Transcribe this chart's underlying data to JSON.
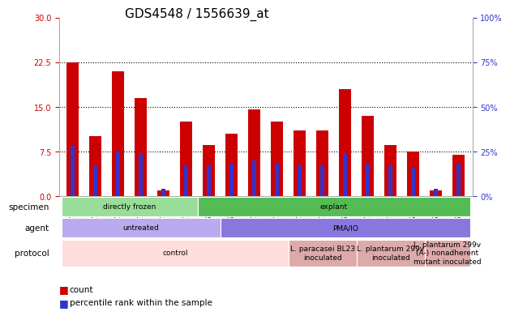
{
  "title": "GDS4548 / 1556639_at",
  "samples": [
    "GSM579384",
    "GSM579385",
    "GSM579386",
    "GSM579381",
    "GSM579382",
    "GSM579383",
    "GSM579396",
    "GSM579397",
    "GSM579398",
    "GSM579387",
    "GSM579388",
    "GSM579389",
    "GSM579390",
    "GSM579391",
    "GSM579392",
    "GSM579393",
    "GSM579394",
    "GSM579395"
  ],
  "red_counts": [
    22.5,
    10.0,
    21.0,
    16.5,
    1.0,
    12.5,
    8.5,
    10.5,
    14.5,
    12.5,
    11.0,
    11.0,
    18.0,
    13.5,
    8.5,
    7.5,
    1.0,
    7.0
  ],
  "blue_percentiles": [
    28,
    17,
    25,
    24,
    4,
    17,
    17,
    18,
    20,
    18,
    17,
    17,
    24,
    18,
    17,
    16,
    4,
    18
  ],
  "ylim_left": [
    0,
    30
  ],
  "ylim_right": [
    0,
    100
  ],
  "yticks_left": [
    0,
    7.5,
    15,
    22.5,
    30
  ],
  "yticks_right": [
    0,
    25,
    50,
    75,
    100
  ],
  "hlines": [
    7.5,
    15.0,
    22.5
  ],
  "bar_color_red": "#cc0000",
  "bar_color_blue": "#3333cc",
  "plot_bg": "#ffffff",
  "specimen_row": {
    "label": "specimen",
    "groups": [
      {
        "label": "directly frozen",
        "start": 0,
        "end": 6,
        "color": "#99dd99"
      },
      {
        "label": "explant",
        "start": 6,
        "end": 18,
        "color": "#55bb55"
      }
    ]
  },
  "agent_row": {
    "label": "agent",
    "groups": [
      {
        "label": "untreated",
        "start": 0,
        "end": 7,
        "color": "#bbaaee"
      },
      {
        "label": "PMA/IO",
        "start": 7,
        "end": 18,
        "color": "#8877dd"
      }
    ]
  },
  "protocol_row": {
    "label": "protocol",
    "groups": [
      {
        "label": "control",
        "start": 0,
        "end": 10,
        "color": "#ffdddd"
      },
      {
        "label": "L. paracasei BL23\ninoculated",
        "start": 10,
        "end": 13,
        "color": "#ddaaaa"
      },
      {
        "label": "L. plantarum 299v\ninoculated",
        "start": 13,
        "end": 16,
        "color": "#ddaaaa"
      },
      {
        "label": "L. plantarum 299v\n(A-) nonadherent\nmutant inoculated",
        "start": 16,
        "end": 18,
        "color": "#ddaaaa"
      }
    ]
  },
  "title_fontsize": 11,
  "tick_fontsize": 7,
  "label_fontsize": 8
}
